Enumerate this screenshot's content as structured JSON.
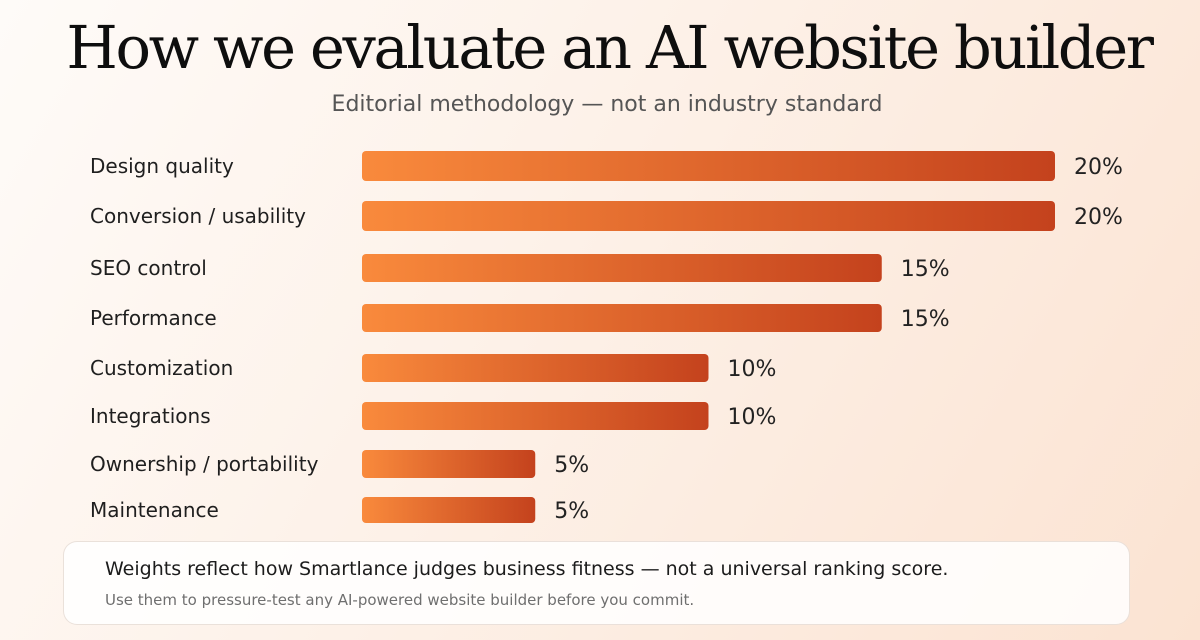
{
  "colors": {
    "bar_start": "#f98a3c",
    "bar_end": "#c4421d",
    "background_accent": "#fbe3d2"
  },
  "chart_data": {
    "type": "bar",
    "orientation": "horizontal",
    "title": "How we evaluate an AI website builder",
    "subtitle": "Editorial methodology — not an industry standard",
    "categories": [
      "Design quality",
      "Conversion / usability",
      "SEO control",
      "Performance",
      "Customization",
      "Integrations",
      "Ownership / portability",
      "Maintenance"
    ],
    "values": [
      20,
      20,
      15,
      15,
      10,
      10,
      5,
      5
    ],
    "value_labels": [
      "20%",
      "20%",
      "15%",
      "15%",
      "10%",
      "10%",
      "5%",
      "5%"
    ],
    "unit": "%",
    "xlim": [
      0,
      20
    ],
    "grid": false,
    "legend": "none"
  },
  "footer": {
    "main": "Weights reflect how Smartlance judges business fitness — not a universal ranking score.",
    "sub": "Use them to pressure-test any AI-powered website builder before you commit."
  }
}
